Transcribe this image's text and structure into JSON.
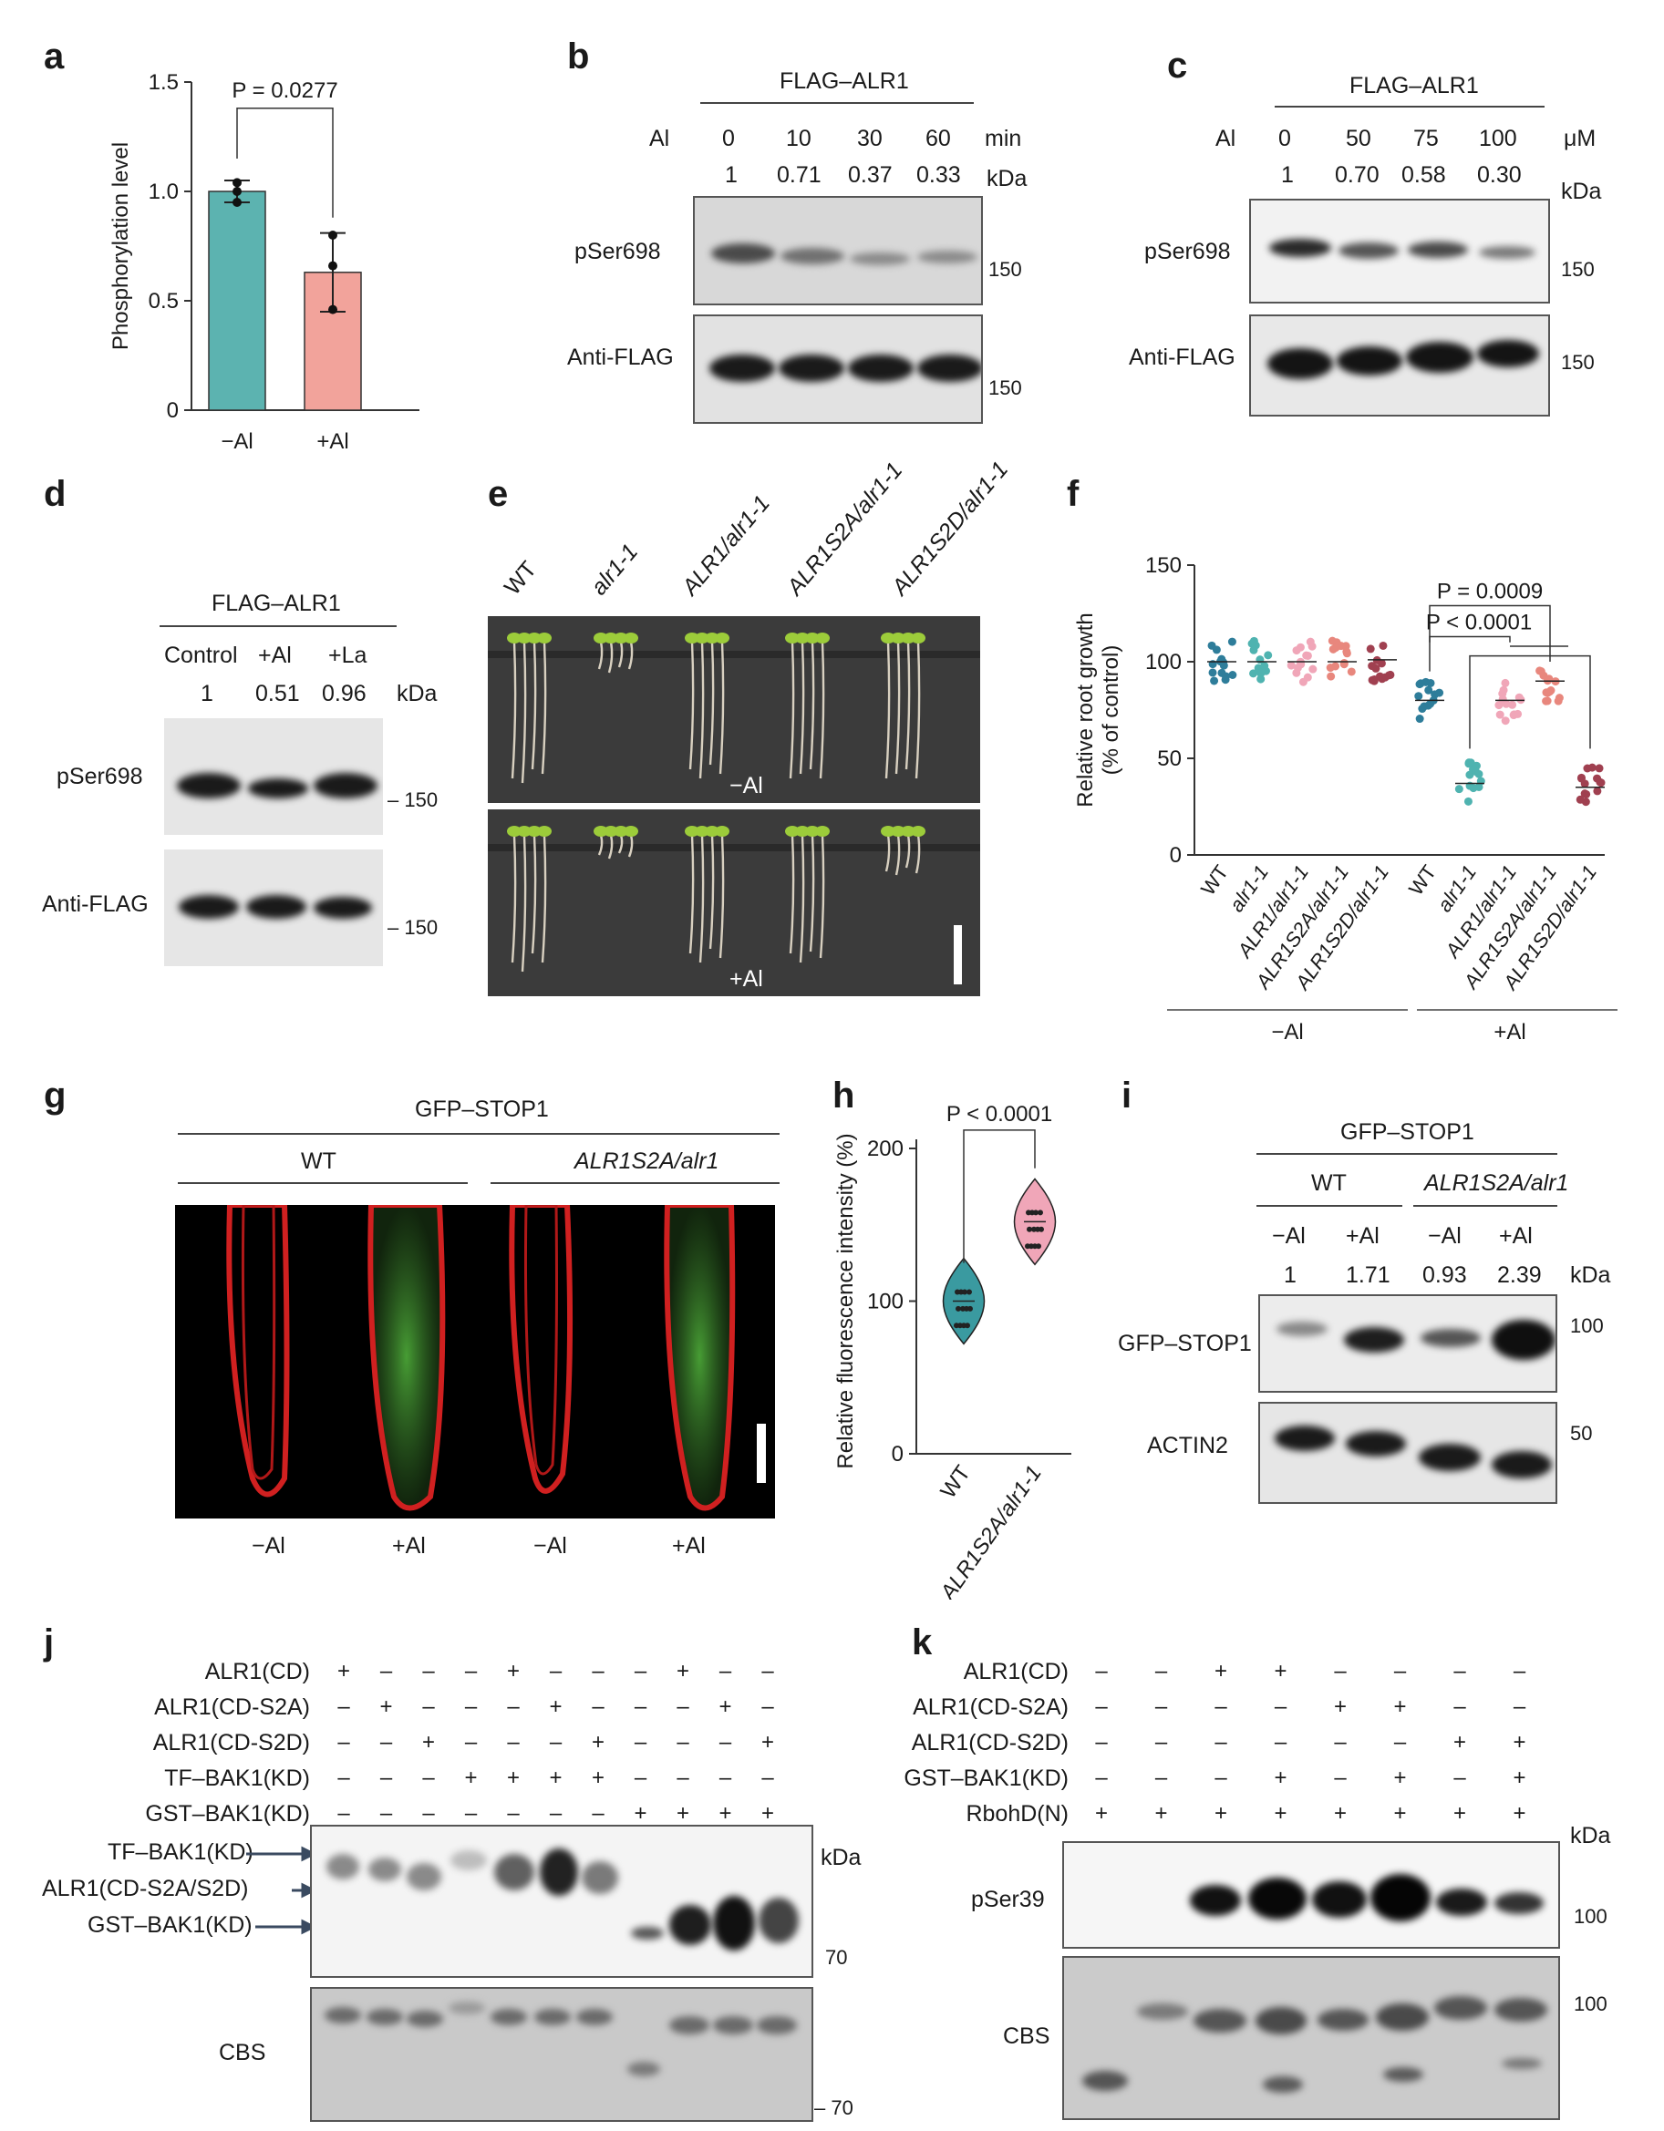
{
  "panels": {
    "a": {
      "letter": "a"
    },
    "b": {
      "letter": "b"
    },
    "c": {
      "letter": "c"
    },
    "d": {
      "letter": "d"
    },
    "e": {
      "letter": "e"
    },
    "f": {
      "letter": "f"
    },
    "g": {
      "letter": "g"
    },
    "h": {
      "letter": "h"
    },
    "i": {
      "letter": "i"
    },
    "j": {
      "letter": "j"
    },
    "k": {
      "letter": "k"
    }
  },
  "chart_data": [
    {
      "panel": "a",
      "type": "bar",
      "categories": [
        "−Al",
        "+Al"
      ],
      "values": [
        1.0,
        0.63
      ],
      "errors": [
        0.05,
        0.18
      ],
      "points": [
        [
          0.95,
          1.0,
          1.04
        ],
        [
          0.46,
          0.66,
          0.8
        ]
      ],
      "colors": [
        "#5cb3b0",
        "#f2a39b"
      ],
      "ylabel": "Phosphorylation level",
      "ylim": [
        0,
        1.5
      ],
      "yticks": [
        "0",
        "0.5",
        "1.0",
        "1.5"
      ],
      "annotation": "P = 0.0277"
    },
    {
      "panel": "f",
      "type": "scatter",
      "categories": [
        "WT",
        "alr1-1",
        "ALR1/alr1-1",
        "ALR1S2A/alr1-1",
        "ALR1S2D/alr1-1",
        "WT",
        "alr1-1",
        "ALR1/alr1-1",
        "ALR1S2A/alr1-1",
        "ALR1S2D/alr1-1"
      ],
      "means": [
        100,
        100,
        100,
        100,
        101,
        80,
        37,
        80,
        90,
        35
      ],
      "colors": [
        "#2e7d9a",
        "#4fb3b0",
        "#f0a6b8",
        "#e8877d",
        "#a04050",
        "#2e7d9a",
        "#4fb3b0",
        "#f0a6b8",
        "#e8877d",
        "#a04050"
      ],
      "ylabel": "Relative root growth\n(% of control)",
      "ylim": [
        0,
        150
      ],
      "yticks": [
        "0",
        "50",
        "100",
        "150"
      ],
      "groups": [
        "−Al",
        "+Al"
      ],
      "annotations": [
        "P = 0.0009",
        "P < 0.0001"
      ]
    },
    {
      "panel": "h",
      "type": "scatter",
      "categories": [
        "WT",
        "ALR1S2A/alr1-1"
      ],
      "means": [
        100,
        152
      ],
      "colors": [
        "#3a9aa0",
        "#f0a6b8"
      ],
      "ylabel": "Relative fluorescence intensity (%)",
      "ylim": [
        0,
        200
      ],
      "yticks": [
        "0",
        "100",
        "200"
      ],
      "annotation": "P < 0.0001"
    }
  ],
  "b": {
    "header": "FLAG–ALR1",
    "row_label": "Al",
    "conditions": [
      "0",
      "10",
      "30",
      "60"
    ],
    "unit": "min",
    "ratios": [
      "1",
      "0.71",
      "0.37",
      "0.33"
    ],
    "kda": "kDa",
    "blots": [
      {
        "label": "pSer698",
        "marker": "150"
      },
      {
        "label": "Anti-FLAG",
        "marker": "150"
      }
    ]
  },
  "c": {
    "header": "FLAG–ALR1",
    "row_label": "Al",
    "conditions": [
      "0",
      "50",
      "75",
      "100"
    ],
    "unit": "μM",
    "ratios": [
      "1",
      "0.70",
      "0.58",
      "0.30"
    ],
    "kda": "kDa",
    "blots": [
      {
        "label": "pSer698",
        "marker": "150"
      },
      {
        "label": "Anti-FLAG",
        "marker": "150"
      }
    ]
  },
  "d": {
    "header": "FLAG–ALR1",
    "conditions": [
      "Control",
      "+Al",
      "+La"
    ],
    "ratios": [
      "1",
      "0.51",
      "0.96"
    ],
    "kda": "kDa",
    "blots": [
      {
        "label": "pSer698",
        "marker": "– 150"
      },
      {
        "label": "Anti-FLAG",
        "marker": "– 150"
      }
    ]
  },
  "e": {
    "genotypes": [
      "WT",
      "alr1-1",
      "ALR1/alr1-1",
      "ALR1S2A/alr1-1",
      "ALR1S2D/alr1-1"
    ],
    "top_label": "−Al",
    "bottom_label": "+Al"
  },
  "g": {
    "header": "GFP–STOP1",
    "groups": [
      "WT",
      "ALR1S2A/alr1"
    ],
    "conditions": [
      "−Al",
      "+Al",
      "−Al",
      "+Al"
    ]
  },
  "i": {
    "header": "GFP–STOP1",
    "groups": [
      "WT",
      "ALR1S2A/alr1"
    ],
    "conditions": [
      "−Al",
      "+Al",
      "−Al",
      "+Al"
    ],
    "ratios": [
      "1",
      "1.71",
      "0.93",
      "2.39"
    ],
    "kda": "kDa",
    "blots": [
      {
        "label": "GFP–STOP1",
        "marker": "100"
      },
      {
        "label": "ACTIN2",
        "marker": "50"
      }
    ]
  },
  "j": {
    "rows": [
      {
        "label": "ALR1(CD)",
        "marks": [
          "+",
          "–",
          "–",
          "–",
          "+",
          "–",
          "–",
          "–",
          "+",
          "–",
          "–"
        ]
      },
      {
        "label": "ALR1(CD-S2A)",
        "marks": [
          "–",
          "+",
          "–",
          "–",
          "–",
          "+",
          "–",
          "–",
          "–",
          "+",
          "–"
        ]
      },
      {
        "label": "ALR1(CD-S2D)",
        "marks": [
          "–",
          "–",
          "+",
          "–",
          "–",
          "–",
          "+",
          "–",
          "–",
          "–",
          "+"
        ]
      },
      {
        "label": "TF–BAK1(KD)",
        "marks": [
          "–",
          "–",
          "–",
          "+",
          "+",
          "+",
          "+",
          "–",
          "–",
          "–",
          "–"
        ]
      },
      {
        "label": "GST–BAK1(KD)",
        "marks": [
          "–",
          "–",
          "–",
          "–",
          "–",
          "–",
          "–",
          "+",
          "+",
          "+",
          "+"
        ]
      }
    ],
    "arrows": [
      "TF–BAK1(KD)",
      "ALR1(CD-S2A/S2D)",
      "GST–BAK1(KD)"
    ],
    "kda": "kDa",
    "markers": [
      "70",
      "– 70"
    ],
    "cbs": "CBS"
  },
  "k": {
    "rows": [
      {
        "label": "ALR1(CD)",
        "marks": [
          "–",
          "–",
          "+",
          "+",
          "–",
          "–",
          "–",
          "–"
        ]
      },
      {
        "label": "ALR1(CD-S2A)",
        "marks": [
          "–",
          "–",
          "–",
          "–",
          "+",
          "+",
          "–",
          "–"
        ]
      },
      {
        "label": "ALR1(CD-S2D)",
        "marks": [
          "–",
          "–",
          "–",
          "–",
          "–",
          "–",
          "+",
          "+"
        ]
      },
      {
        "label": "GST–BAK1(KD)",
        "marks": [
          "–",
          "–",
          "–",
          "+",
          "–",
          "+",
          "–",
          "+"
        ]
      },
      {
        "label": "RbohD(N)",
        "marks": [
          "+",
          "+",
          "+",
          "+",
          "+",
          "+",
          "+",
          "+"
        ]
      }
    ],
    "kda": "kDa",
    "blots": [
      {
        "label": "pSer39",
        "marker": "100"
      },
      {
        "label": "CBS",
        "marker": "100"
      }
    ]
  }
}
